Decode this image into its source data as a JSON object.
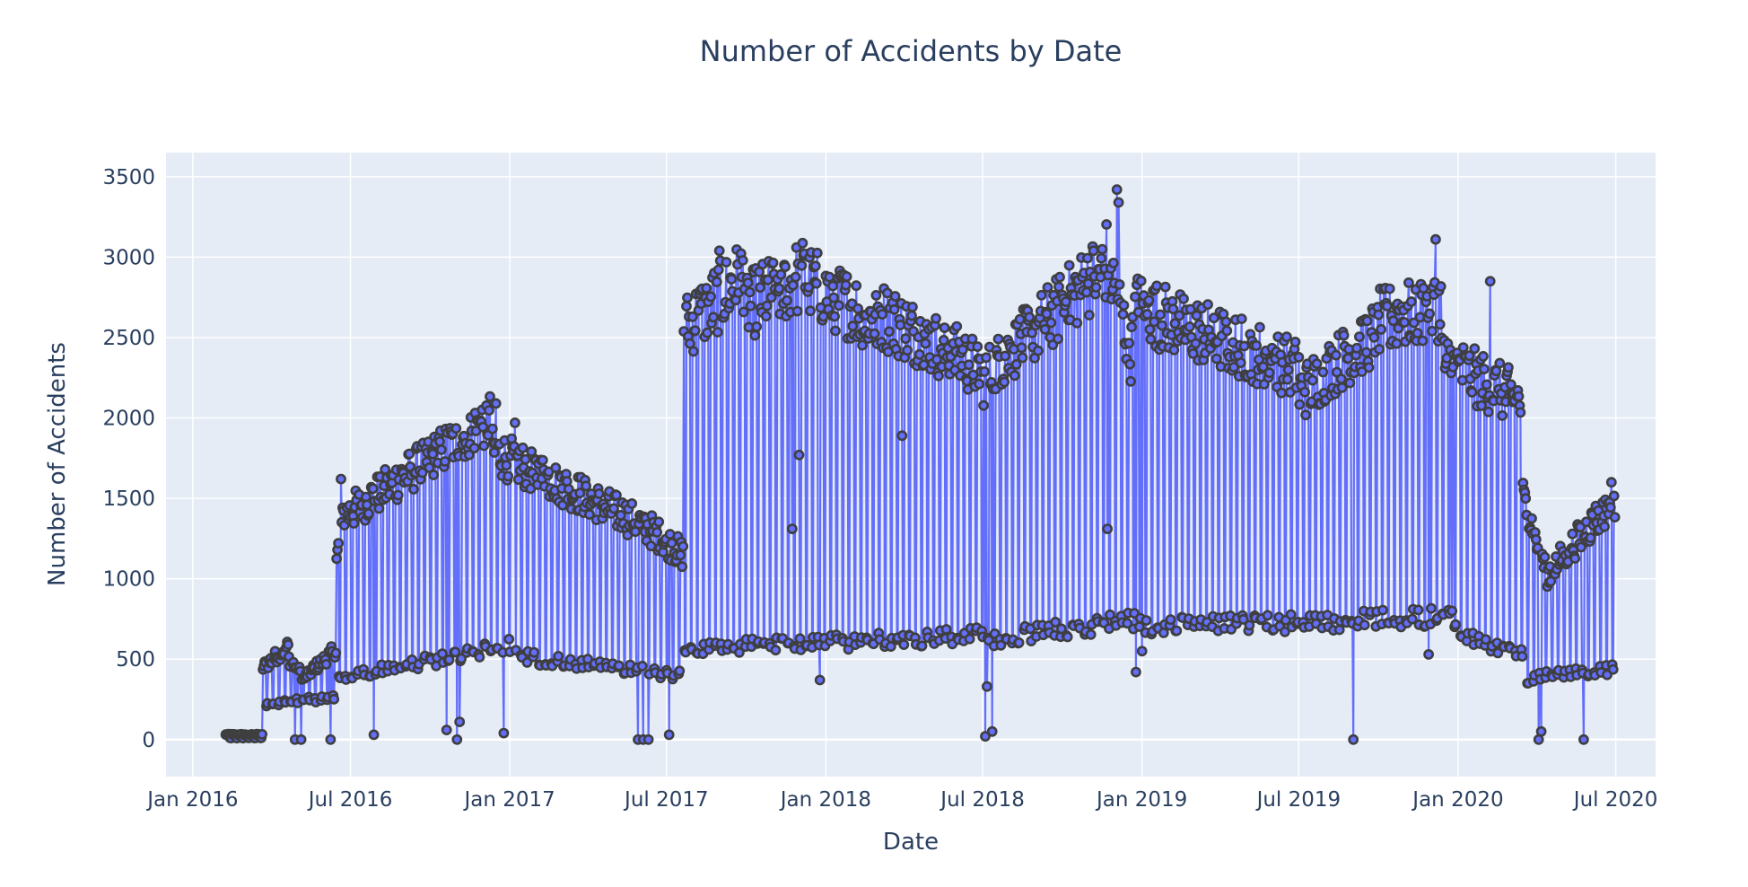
{
  "chart_data": {
    "type": "line",
    "mode": "lines+markers",
    "title": "Number of Accidents by Date",
    "xlabel": "Date",
    "ylabel": "Number of Accidents",
    "xlim": [
      "2015-12-01",
      "2020-08-16"
    ],
    "ylim": [
      -230,
      3650
    ],
    "x_ticks": [
      {
        "value": "2016-01-01",
        "label": "Jan 2016"
      },
      {
        "value": "2016-07-01",
        "label": "Jul 2016"
      },
      {
        "value": "2017-01-01",
        "label": "Jan 2017"
      },
      {
        "value": "2017-07-01",
        "label": "Jul 2017"
      },
      {
        "value": "2018-01-01",
        "label": "Jan 2018"
      },
      {
        "value": "2018-07-01",
        "label": "Jul 2018"
      },
      {
        "value": "2019-01-01",
        "label": "Jan 2019"
      },
      {
        "value": "2019-07-01",
        "label": "Jul 2019"
      },
      {
        "value": "2020-01-01",
        "label": "Jan 2020"
      },
      {
        "value": "2020-07-01",
        "label": "Jul 2020"
      }
    ],
    "y_ticks": [
      0,
      500,
      1000,
      1500,
      2000,
      2500,
      3000,
      3500
    ],
    "grid": true,
    "colors": {
      "line": "#636efa",
      "marker_fill": "#636efa",
      "marker_edge": "#3f3f3f",
      "plot_bg": "#e5ecf6",
      "grid": "#ffffff",
      "text": "#2a3f5f"
    },
    "series": [
      {
        "x_start": "2016-02-08",
        "x_end": "2020-06-30",
        "x_step_days": 1,
        "description_note": "daily counts",
        "weekly_pattern": "5 weekday values followed by 2 weekend values",
        "weekday_segments": [
          {
            "from": "2016-02-08",
            "to": "2016-03-21",
            "start": 30,
            "end": 30
          },
          {
            "from": "2016-03-22",
            "to": "2016-04-20",
            "start": 450,
            "end": 580
          },
          {
            "from": "2016-04-21",
            "to": "2016-05-10",
            "start": 500,
            "end": 380
          },
          {
            "from": "2016-05-11",
            "to": "2016-06-14",
            "start": 400,
            "end": 560
          },
          {
            "from": "2016-06-15",
            "to": "2016-06-25",
            "start": 1120,
            "end": 1450
          },
          {
            "from": "2016-06-26",
            "to": "2016-12-10",
            "start": 1400,
            "end": 2000
          },
          {
            "from": "2016-12-11",
            "to": "2017-06-05",
            "start": 1800,
            "end": 1330
          },
          {
            "from": "2017-06-06",
            "to": "2017-07-20",
            "start": 1330,
            "end": 1150
          },
          {
            "from": "2017-07-21",
            "to": "2017-10-01",
            "start": 2560,
            "end": 2900
          },
          {
            "from": "2017-10-02",
            "to": "2017-12-10",
            "start": 2700,
            "end": 2900
          },
          {
            "from": "2017-12-11",
            "to": "2018-03-01",
            "start": 2850,
            "end": 2600
          },
          {
            "from": "2018-03-02",
            "to": "2018-07-01",
            "start": 2650,
            "end": 2300
          },
          {
            "from": "2018-07-02",
            "to": "2018-11-20",
            "start": 2250,
            "end": 2950
          },
          {
            "from": "2018-11-21",
            "to": "2018-12-20",
            "start": 3000,
            "end": 2400
          },
          {
            "from": "2018-12-21",
            "to": "2019-07-01",
            "start": 2700,
            "end": 2300
          },
          {
            "from": "2019-07-02",
            "to": "2019-10-01",
            "start": 2150,
            "end": 2550
          },
          {
            "from": "2019-10-02",
            "to": "2019-12-15",
            "start": 2600,
            "end": 2700
          },
          {
            "from": "2019-12-16",
            "to": "2020-03-15",
            "start": 2350,
            "end": 2100
          },
          {
            "from": "2020-03-16",
            "to": "2020-04-15",
            "start": 1500,
            "end": 1000
          },
          {
            "from": "2020-04-16",
            "to": "2020-06-30",
            "start": 1050,
            "end": 1500
          }
        ],
        "weekend_segments": [
          {
            "from": "2016-02-08",
            "to": "2016-03-21",
            "start": 10,
            "end": 10
          },
          {
            "from": "2016-03-22",
            "to": "2016-06-14",
            "start": 220,
            "end": 260
          },
          {
            "from": "2016-06-15",
            "to": "2016-12-31",
            "start": 380,
            "end": 580
          },
          {
            "from": "2017-01-01",
            "to": "2017-07-20",
            "start": 520,
            "end": 400
          },
          {
            "from": "2017-07-21",
            "to": "2018-06-30",
            "start": 560,
            "end": 650
          },
          {
            "from": "2018-07-01",
            "to": "2018-12-31",
            "start": 620,
            "end": 750
          },
          {
            "from": "2019-01-01",
            "to": "2019-12-31",
            "start": 700,
            "end": 760
          },
          {
            "from": "2020-01-01",
            "to": "2020-03-20",
            "start": 650,
            "end": 520
          },
          {
            "from": "2020-03-21",
            "to": "2020-06-30",
            "start": 380,
            "end": 440
          }
        ],
        "points": [
          {
            "x": "2016-04-28",
            "y": 0
          },
          {
            "x": "2016-05-05",
            "y": 0
          },
          {
            "x": "2016-06-08",
            "y": 0
          },
          {
            "x": "2016-06-20",
            "y": 1620
          },
          {
            "x": "2016-07-28",
            "y": 30
          },
          {
            "x": "2016-10-20",
            "y": 60
          },
          {
            "x": "2016-11-01",
            "y": 0
          },
          {
            "x": "2016-11-04",
            "y": 110
          },
          {
            "x": "2016-12-16",
            "y": 2090
          },
          {
            "x": "2016-12-25",
            "y": 40
          },
          {
            "x": "2017-01-07",
            "y": 1970
          },
          {
            "x": "2017-05-29",
            "y": 0
          },
          {
            "x": "2017-06-04",
            "y": 0
          },
          {
            "x": "2017-06-10",
            "y": 0
          },
          {
            "x": "2017-07-04",
            "y": 30
          },
          {
            "x": "2017-08-31",
            "y": 3040
          },
          {
            "x": "2017-11-23",
            "y": 1310
          },
          {
            "x": "2017-12-01",
            "y": 1770
          },
          {
            "x": "2017-12-25",
            "y": 370
          },
          {
            "x": "2018-03-30",
            "y": 1890
          },
          {
            "x": "2018-07-04",
            "y": 20
          },
          {
            "x": "2018-07-06",
            "y": 330
          },
          {
            "x": "2018-07-12",
            "y": 50
          },
          {
            "x": "2018-11-22",
            "y": 1310
          },
          {
            "x": "2018-12-03",
            "y": 3420
          },
          {
            "x": "2018-12-05",
            "y": 3340
          },
          {
            "x": "2018-12-25",
            "y": 420
          },
          {
            "x": "2019-01-01",
            "y": 550
          },
          {
            "x": "2019-09-02",
            "y": 0
          },
          {
            "x": "2019-11-28",
            "y": 530
          },
          {
            "x": "2019-12-06",
            "y": 3110
          },
          {
            "x": "2019-12-25",
            "y": 800
          },
          {
            "x": "2020-02-07",
            "y": 2850
          },
          {
            "x": "2020-04-03",
            "y": 0
          },
          {
            "x": "2020-04-06",
            "y": 50
          },
          {
            "x": "2020-05-25",
            "y": 0
          },
          {
            "x": "2020-06-26",
            "y": 1600
          }
        ]
      }
    ]
  }
}
